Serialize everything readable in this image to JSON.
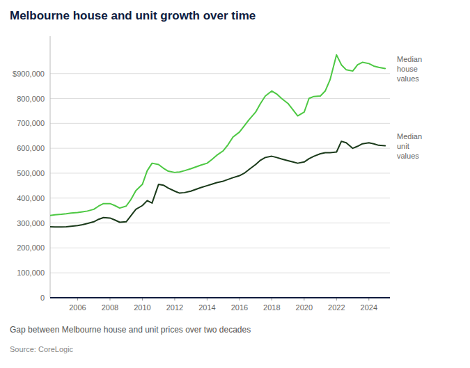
{
  "chart_data": {
    "type": "line",
    "title": "Melbourne house and unit growth over time",
    "subtitle": "Gap between Melbourne house and unit prices over two decades",
    "source": "Source: CoreLogic",
    "x": [
      2004.3,
      2004.6,
      2005.0,
      2005.3,
      2005.6,
      2006.0,
      2006.3,
      2006.6,
      2007.0,
      2007.3,
      2007.6,
      2008.0,
      2008.3,
      2008.6,
      2009.0,
      2009.3,
      2009.6,
      2010.0,
      2010.3,
      2010.6,
      2011.0,
      2011.3,
      2011.6,
      2012.0,
      2012.3,
      2012.6,
      2013.0,
      2013.3,
      2013.6,
      2014.0,
      2014.3,
      2014.6,
      2015.0,
      2015.3,
      2015.6,
      2016.0,
      2016.3,
      2016.6,
      2017.0,
      2017.3,
      2017.6,
      2018.0,
      2018.3,
      2018.6,
      2019.0,
      2019.3,
      2019.6,
      2020.0,
      2020.3,
      2020.6,
      2021.0,
      2021.3,
      2021.6,
      2022.0,
      2022.3,
      2022.6,
      2023.0,
      2023.3,
      2023.6,
      2024.0,
      2024.3,
      2024.6,
      2025.0
    ],
    "series": [
      {
        "name": "Median\nhouse\nvalues",
        "color": "#4dc843",
        "values": [
          330000,
          333000,
          335000,
          337000,
          340000,
          342000,
          345000,
          348000,
          355000,
          368000,
          378000,
          378000,
          370000,
          360000,
          368000,
          395000,
          430000,
          455000,
          510000,
          540000,
          535000,
          520000,
          508000,
          503000,
          505000,
          510000,
          518000,
          525000,
          532000,
          540000,
          555000,
          572000,
          590000,
          615000,
          645000,
          665000,
          690000,
          715000,
          745000,
          780000,
          810000,
          830000,
          818000,
          800000,
          780000,
          755000,
          730000,
          745000,
          800000,
          808000,
          810000,
          830000,
          875000,
          975000,
          935000,
          915000,
          910000,
          935000,
          945000,
          940000,
          930000,
          925000,
          920000
        ]
      },
      {
        "name": "Median\nunit\nvalues",
        "color": "#1a3a1a",
        "values": [
          285000,
          284000,
          284000,
          285000,
          287000,
          290000,
          293000,
          298000,
          305000,
          315000,
          322000,
          320000,
          312000,
          303000,
          305000,
          330000,
          355000,
          370000,
          390000,
          380000,
          455000,
          452000,
          440000,
          428000,
          420000,
          422000,
          428000,
          435000,
          442000,
          450000,
          456000,
          462000,
          468000,
          475000,
          482000,
          490000,
          500000,
          515000,
          535000,
          552000,
          563000,
          568000,
          563000,
          557000,
          550000,
          545000,
          540000,
          545000,
          558000,
          568000,
          578000,
          582000,
          582000,
          585000,
          628000,
          622000,
          600000,
          608000,
          618000,
          622000,
          618000,
          612000,
          610000
        ]
      }
    ],
    "xlim": [
      2004.3,
      2025.3
    ],
    "ylim": [
      0,
      1050000
    ],
    "xticks": [
      2006,
      2008,
      2010,
      2012,
      2014,
      2016,
      2018,
      2020,
      2022,
      2024
    ],
    "yticks": [
      0,
      {
        "value": 100000,
        "label": "100,000"
      },
      {
        "value": 200000,
        "label": "200,000"
      },
      {
        "value": 300000,
        "label": "300,000"
      },
      {
        "value": 400000,
        "label": "400,000"
      },
      {
        "value": 500000,
        "label": "500,000"
      },
      {
        "value": 600000,
        "label": "600,000"
      },
      {
        "value": 700000,
        "label": "700,000"
      },
      {
        "value": 800000,
        "label": "800,000"
      },
      {
        "value": 900000,
        "label": "$900,000"
      }
    ],
    "grid": true
  }
}
